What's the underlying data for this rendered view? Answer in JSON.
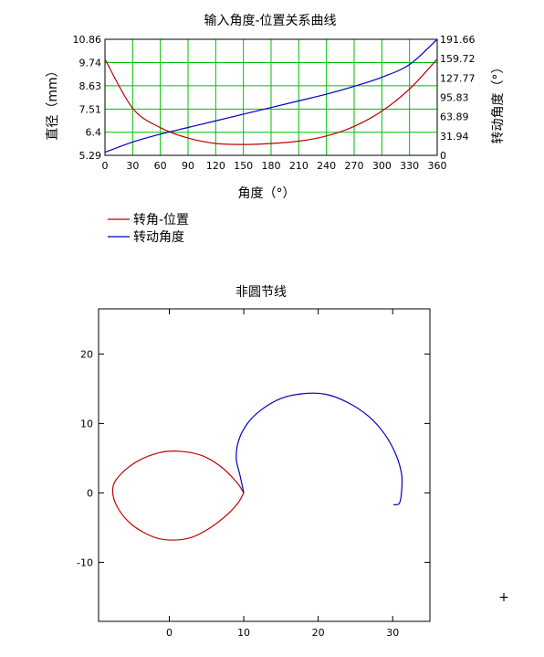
{
  "chart_data": [
    {
      "type": "line",
      "title": "输入角度-位置关系曲线",
      "xlabel": "角度（°）",
      "ylabel_left": "直径（mm）",
      "ylabel_right": "转动角度（°）",
      "x_ticks": [
        "0",
        "30",
        "60",
        "90",
        "120",
        "150",
        "180",
        "210",
        "240",
        "270",
        "300",
        "330",
        "360"
      ],
      "y_left_ticks": [
        "5.29",
        "6.4",
        "7.51",
        "8.63",
        "9.74",
        "10.86"
      ],
      "y_right_ticks": [
        "0",
        "31.94",
        "63.89",
        "95.83",
        "127.77",
        "159.72",
        "191.66"
      ],
      "xlim": [
        0,
        360
      ],
      "ylim_left": [
        5.29,
        10.86
      ],
      "ylim_right": [
        0,
        191.66
      ],
      "grid": true,
      "grid_color": "#00c000",
      "legend_position": "below-left",
      "series": [
        {
          "name": "转角-位置",
          "color": "#c00000",
          "axis": "left",
          "x": [
            0,
            30,
            60,
            90,
            120,
            150,
            180,
            210,
            240,
            270,
            300,
            330,
            360
          ],
          "y": [
            9.91,
            7.55,
            6.62,
            6.12,
            5.86,
            5.81,
            5.86,
            5.97,
            6.22,
            6.68,
            7.41,
            8.47,
            9.91
          ]
        },
        {
          "name": "转动角度",
          "color": "#0000c0",
          "axis": "right",
          "x": [
            0,
            30,
            60,
            90,
            120,
            150,
            180,
            210,
            240,
            270,
            300,
            330,
            360
          ],
          "y": [
            5,
            22,
            35,
            46,
            57,
            68,
            79,
            90,
            101,
            114,
            129,
            150,
            191.66
          ]
        }
      ]
    },
    {
      "type": "line",
      "title": "非圆节线",
      "x_ticks": [
        "0",
        "10",
        "20",
        "30"
      ],
      "y_ticks": [
        "20",
        "10",
        "0",
        "-10"
      ],
      "xlim": [
        -9.5,
        35
      ],
      "ylim": [
        -18.5,
        26.5
      ],
      "grid": false,
      "series": [
        {
          "color": "#c00000",
          "x": [
            10,
            9.2,
            7.6,
            5.4,
            3.0,
            0.5,
            -2,
            -5,
            -7,
            -7.6,
            -6.6,
            -4.2,
            -1.3,
            1.3,
            4.3,
            6.9,
            9,
            10
          ],
          "y": [
            0,
            -1.5,
            -3.3,
            -5.1,
            -6.4,
            -6.8,
            -6.4,
            -4.6,
            -2,
            0.6,
            2.6,
            4.6,
            5.8,
            6.0,
            5.4,
            3.8,
            1.6,
            0
          ]
        },
        {
          "color": "#0000c0",
          "x": [
            10,
            9.5,
            9.0,
            9.3,
            10.5,
            12.4,
            15,
            18,
            21,
            24,
            26.8,
            28.9,
            30.4,
            31.2,
            31.2,
            30.9,
            30.1
          ],
          "y": [
            0,
            2.5,
            4.9,
            7.5,
            10,
            12,
            13.6,
            14.3,
            14.2,
            13,
            11,
            8.5,
            5.6,
            2.7,
            0.3,
            -1.5,
            -1.7
          ]
        }
      ]
    }
  ],
  "marker_symbol": "+",
  "marker_color": "#c00000"
}
